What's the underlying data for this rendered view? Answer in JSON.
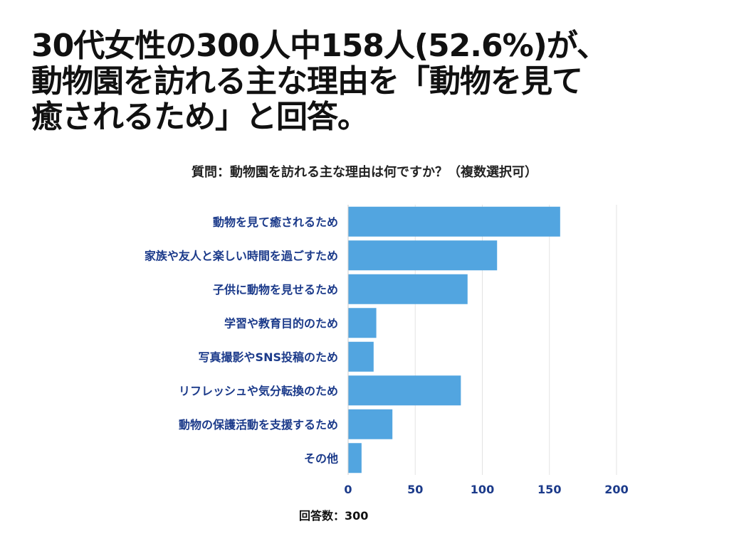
{
  "headline": {
    "line1": "30代女性の300人中158人(52.6%)が、",
    "line2": "動物園を訪れる主な理由を「動物を見て",
    "line3": "癒されるため」と回答。"
  },
  "chart_data": {
    "type": "bar",
    "orientation": "horizontal",
    "title": "質問：動物園を訪れる主な理由は何ですか？（複数選択可）",
    "categories": [
      "動物を見て癒されるため",
      "家族や友人と楽しい時間を過ごすため",
      "子供に動物を見せるため",
      "学習や教育目的のため",
      "写真撮影やSNS投稿のため",
      "リフレッシュや気分転換のため",
      "動物の保護活動を支援するため",
      "その他"
    ],
    "values": [
      158,
      111,
      89,
      21,
      19,
      84,
      33,
      10
    ],
    "xlim": [
      0,
      200
    ],
    "xticks": [
      "0",
      "50",
      "100",
      "150",
      "200"
    ],
    "xlabel": "",
    "ylabel": "",
    "grid": true,
    "bar_color": "#52a5e0",
    "label_color": "#1b3a8a",
    "grid_color": "#e3e3e3"
  },
  "footer": {
    "respondents": "回答数：300"
  }
}
